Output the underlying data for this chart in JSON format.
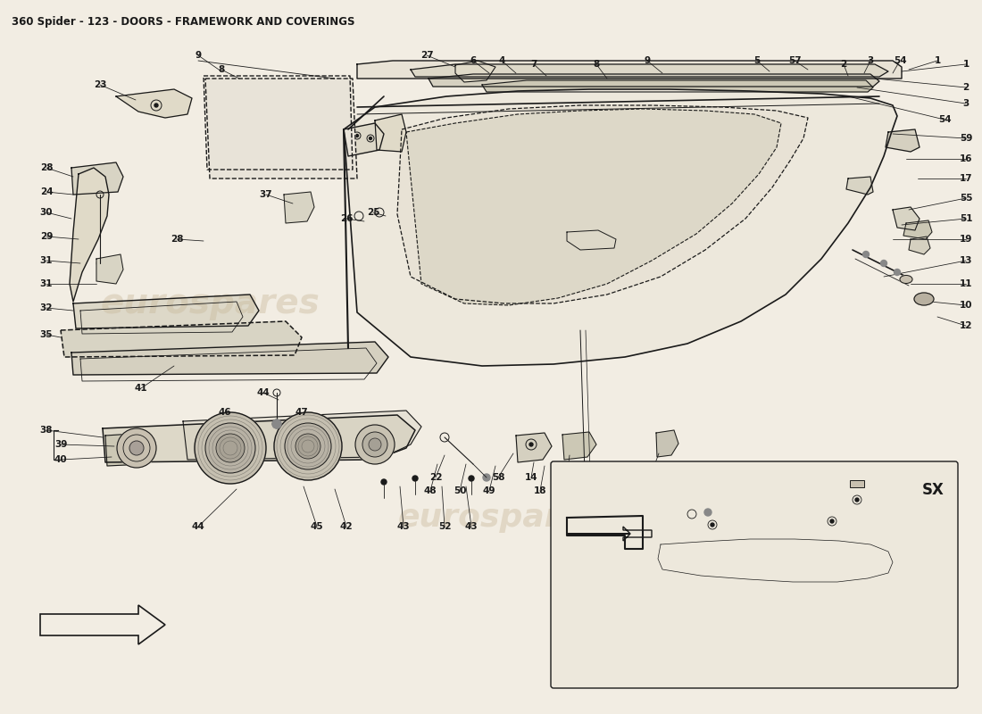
{
  "title": "360 Spider - 123 - DOORS - FRAMEWORK AND COVERINGS",
  "title_fontsize": 8.5,
  "bg_color": "#f2ede3",
  "line_color": "#1a1a1a",
  "watermark_color": "#c8b89a",
  "watermark_text": "eurospares",
  "fig_width": 11.0,
  "fig_height": 8.0,
  "dpi": 100
}
